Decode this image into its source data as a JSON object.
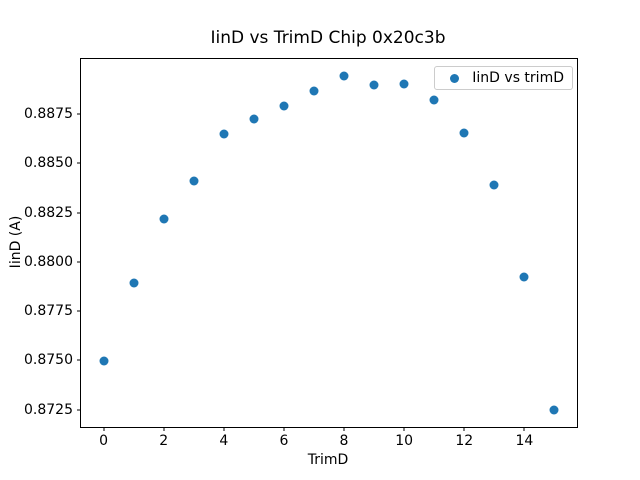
{
  "figure": {
    "title": "IinD vs TrimD Chip 0x20c3b",
    "xlabel": "TrimD",
    "ylabel": "IinD (A)"
  },
  "chart_data": {
    "type": "scatter",
    "title": "IinD vs TrimD Chip 0x20c3b",
    "xlabel": "TrimD",
    "ylabel": "IinD (A)",
    "legend": [
      "IinD vs trimD"
    ],
    "legend_position": "upper right",
    "grid": false,
    "marker_color": "#1f77b4",
    "x": [
      0,
      1,
      2,
      3,
      4,
      5,
      6,
      7,
      8,
      9,
      10,
      11,
      12,
      13,
      14,
      15
    ],
    "y": [
      0.87495,
      0.87895,
      0.88218,
      0.88412,
      0.88647,
      0.88726,
      0.8879,
      0.88866,
      0.88945,
      0.889,
      0.88903,
      0.8882,
      0.88652,
      0.88389,
      0.87926,
      0.87249
    ],
    "xlim": [
      -0.75,
      15.75
    ],
    "ylim": [
      0.871625,
      0.890299
    ],
    "xticks": [
      0,
      2,
      4,
      6,
      8,
      10,
      12,
      14
    ],
    "yticks": [
      0.8725,
      0.875,
      0.8775,
      0.88,
      0.8825,
      0.885,
      0.8875
    ],
    "ytick_decimals": 4
  }
}
